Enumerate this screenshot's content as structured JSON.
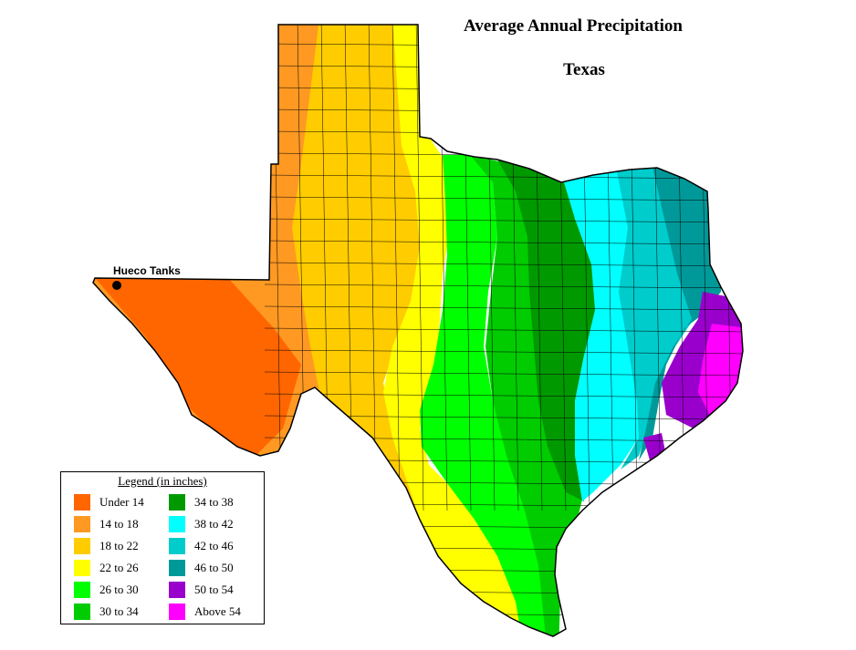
{
  "title": "Average Annual Precipitation",
  "subtitle": "Texas",
  "place": {
    "name": "Hueco Tanks"
  },
  "legend": {
    "title": "Legend (in inches)",
    "items": [
      {
        "label": "Under 14",
        "color": "#ff6600"
      },
      {
        "label": "14 to 18",
        "color": "#ff9922"
      },
      {
        "label": "18 to 22",
        "color": "#ffcc00"
      },
      {
        "label": "22 to 26",
        "color": "#ffff00"
      },
      {
        "label": "26 to 30",
        "color": "#00ff00"
      },
      {
        "label": "30 to 34",
        "color": "#00cc00"
      },
      {
        "label": "34 to 38",
        "color": "#009900"
      },
      {
        "label": "38 to 42",
        "color": "#00ffff"
      },
      {
        "label": "42 to 46",
        "color": "#00cccc"
      },
      {
        "label": "46 to 50",
        "color": "#009999"
      },
      {
        "label": "50 to 54",
        "color": "#9900cc"
      },
      {
        "label": "Above 54",
        "color": "#ff00ff"
      }
    ]
  },
  "outline_color": "#000000"
}
